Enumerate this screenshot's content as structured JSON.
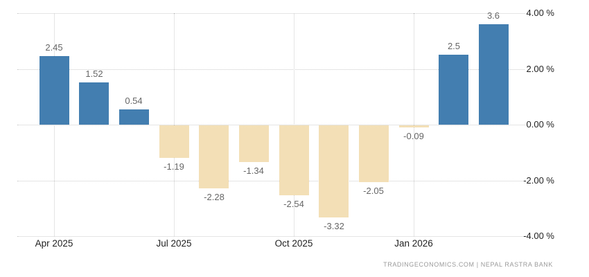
{
  "chart": {
    "attribution": "TRADINGECONOMICS.COM  |  NEPAL RASTRA BANK"
  },
  "chart_data": {
    "type": "bar",
    "title": "",
    "xlabel": "",
    "ylabel": "",
    "categories": [
      "Apr 2025",
      "May 2025",
      "Jun 2025",
      "Jul 2025",
      "Aug 2025",
      "Sep 2025",
      "Oct 2025",
      "Nov 2025",
      "Dec 2025",
      "Jan 2026",
      "Feb 2026",
      "Mar 2026"
    ],
    "values": [
      2.45,
      1.52,
      0.54,
      -1.19,
      -2.28,
      -1.34,
      -2.54,
      -3.32,
      -2.05,
      -0.09,
      2.5,
      3.6
    ],
    "value_labels": [
      "2.45",
      "1.52",
      "0.54",
      "-1.19",
      "-2.28",
      "-1.34",
      "-2.54",
      "-3.32",
      "-2.05",
      "-0.09",
      "2.5",
      "3.6"
    ],
    "positive_color": "#437eb0",
    "negative_color": "#f3dfb6",
    "value_label_color": "#666666",
    "axis_label_color": "#1f1f1f",
    "gridline_color": "#cbcbcb",
    "ylim": [
      -4,
      4
    ],
    "yticks": [
      {
        "value": 4,
        "label": "4.00 %"
      },
      {
        "value": 2,
        "label": "2.00 %"
      },
      {
        "value": 0,
        "label": "0.00 %"
      },
      {
        "value": -2,
        "label": "-2.00 %"
      },
      {
        "value": -4,
        "label": "-4.00 %"
      }
    ],
    "xticks": [
      {
        "index": 0,
        "label": "Apr 2025"
      },
      {
        "index": 3,
        "label": "Jul 2025"
      },
      {
        "index": 6,
        "label": "Oct 2025"
      },
      {
        "index": 9,
        "label": "Jan 2026"
      }
    ],
    "grid": "dotted",
    "legend": "none"
  }
}
